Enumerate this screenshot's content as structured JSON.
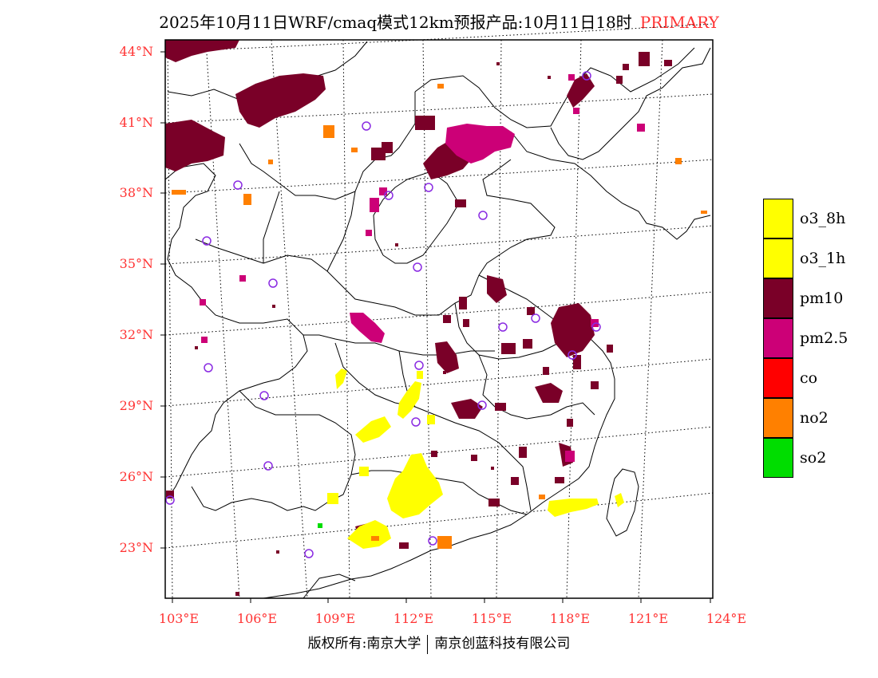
{
  "header": {
    "title": "2025年10月11日WRF/cmaq模式12km预报产品:10月11日18时",
    "tag": "PRIMARY"
  },
  "axes": {
    "lat_labels": [
      "44°N",
      "41°N",
      "38°N",
      "35°N",
      "32°N",
      "29°N",
      "26°N",
      "23°N"
    ],
    "lon_labels": [
      "103°E",
      "106°E",
      "109°E",
      "112°E",
      "115°E",
      "118°E",
      "121°E",
      "124°E"
    ]
  },
  "footer": {
    "left": "版权所有:南京大学",
    "right": "南京创蓝科技有限公司"
  },
  "legend": [
    {
      "label": "o3_8h",
      "color": "#ffff00"
    },
    {
      "label": "o3_1h",
      "color": "#ffff00"
    },
    {
      "label": "pm10",
      "color": "#7a0028"
    },
    {
      "label": "pm2.5",
      "color": "#cc0077"
    },
    {
      "label": "co",
      "color": "#ff0000"
    },
    {
      "label": "no2",
      "color": "#ff8000"
    },
    {
      "label": "so2",
      "color": "#00dd00"
    }
  ],
  "colors": {
    "label_red": "#ff3333",
    "station_circle": "#8a2be2"
  }
}
